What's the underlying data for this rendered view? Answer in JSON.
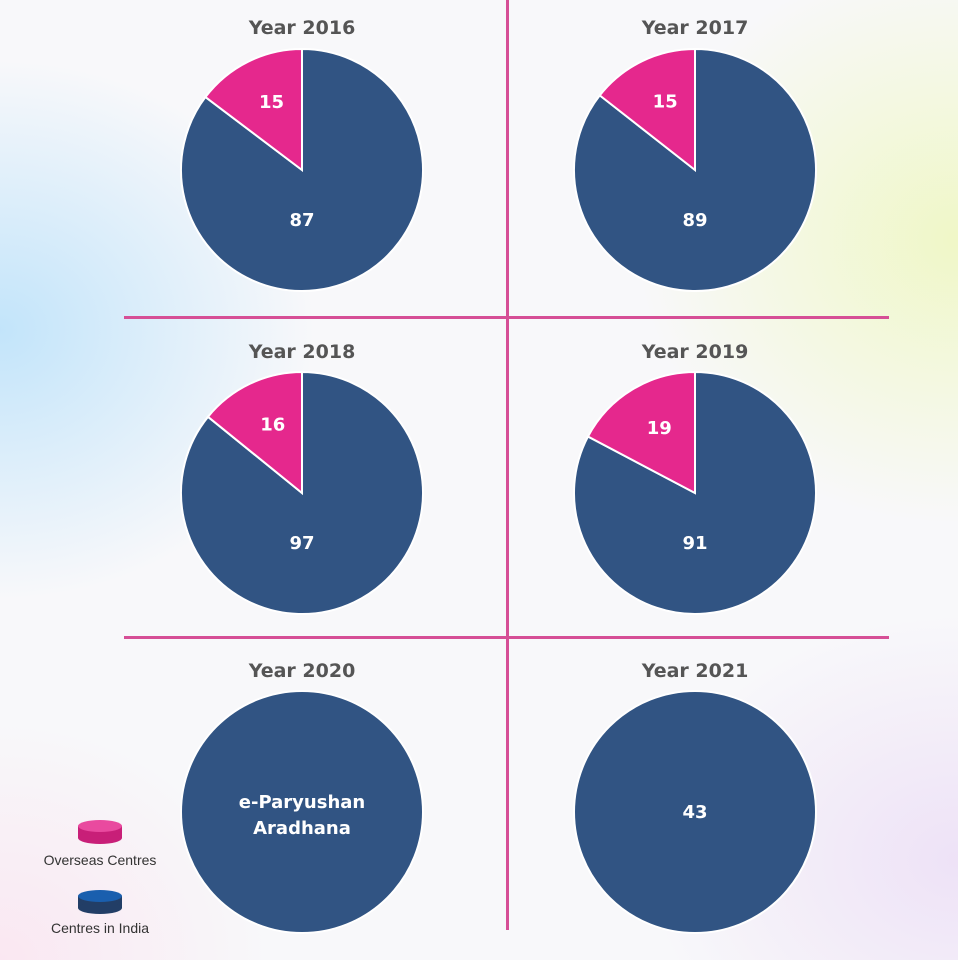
{
  "chart_data": {
    "type": "pie",
    "series_order": [
      "Overseas Centres",
      "Centres in India"
    ],
    "colors": {
      "Overseas Centres": "#e5288d",
      "Centres in India": "#315483"
    },
    "panels": [
      {
        "title": "Year 2016",
        "overseas": 15,
        "india": 87
      },
      {
        "title": "Year 2017",
        "overseas": 15,
        "india": 89
      },
      {
        "title": "Year 2018",
        "overseas": 16,
        "india": 97
      },
      {
        "title": "Year 2019",
        "overseas": 19,
        "india": 91
      },
      {
        "title": "Year 2020",
        "overseas": null,
        "india": null,
        "note_lines": [
          "e-Paryushan",
          "Aradhana"
        ]
      },
      {
        "title": "Year 2021",
        "overseas": null,
        "india": 43
      }
    ],
    "legend": [
      {
        "label": "Overseas Centres",
        "icon": "pink-cylinder-icon",
        "color": "#e5288d"
      },
      {
        "label": "Centres in India",
        "icon": "blue-cylinder-icon",
        "color": "#315483"
      }
    ]
  }
}
